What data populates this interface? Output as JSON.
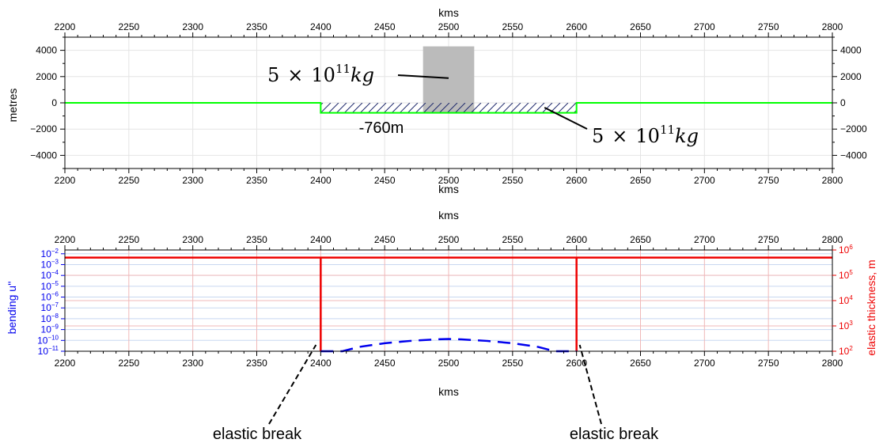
{
  "chart_data": [
    {
      "type": "line",
      "xlabel": "kms",
      "ylabel": "metres",
      "xlim": [
        2200,
        2800
      ],
      "ylim": [
        -5000,
        5000
      ],
      "xticks": [
        2200,
        2250,
        2300,
        2350,
        2400,
        2450,
        2500,
        2550,
        2600,
        2650,
        2700,
        2750,
        2800
      ],
      "yticks_left": [
        "4000",
        "2000",
        "0",
        "−2000",
        "−4000"
      ],
      "yticks_left_values": [
        4000,
        2000,
        0,
        -2000,
        -4000
      ],
      "yticks_right": [
        "4000",
        "2000",
        "0",
        "−2000",
        "−4000"
      ],
      "grid": true,
      "colors": {
        "surface": "#00ff00",
        "load_block": "#bbbbbb",
        "basin_hatch": "#1f2a6b"
      },
      "series": [
        {
          "x": [
            2200,
            2400,
            2400,
            2600,
            2600,
            2800
          ],
          "y": [
            0,
            0,
            -760,
            -760,
            0,
            0
          ]
        }
      ],
      "load_block": {
        "x0": 2480,
        "x1": 2520,
        "y0": -760,
        "y1": 4300
      },
      "basin": {
        "x0": 2400,
        "x1": 2600,
        "y0": -760,
        "y1": 0
      },
      "annotations": [
        {
          "base": "5",
          "times": "×",
          "mantissa": "10",
          "exponent": "11",
          "unit": "kg",
          "points_to": [
            2500,
            2000
          ]
        },
        {
          "text": "-760m"
        },
        {
          "base": "5",
          "times": "×",
          "mantissa": "10",
          "exponent": "11",
          "unit": "kg",
          "points_to": [
            2570,
            -600
          ]
        }
      ]
    },
    {
      "type": "line",
      "xlabel": "kms",
      "ylabel_left": "bending u''",
      "ylabel_right": "elastic thickness, m",
      "xlim": [
        2200,
        2800
      ],
      "xticks": [
        2200,
        2250,
        2300,
        2350,
        2400,
        2450,
        2500,
        2550,
        2600,
        2650,
        2700,
        2750,
        2800
      ],
      "left_log_decades": [
        -11,
        -2
      ],
      "left_tick_exponents": [
        -11,
        -10,
        -9,
        -8,
        -7,
        -6,
        -5,
        -4,
        -3,
        -2
      ],
      "right_log_decades": [
        2,
        6
      ],
      "right_tick_exponents": [
        2,
        3,
        4,
        5,
        6
      ],
      "tick_base": "10",
      "grid": true,
      "colors": {
        "bending": "#0000ee",
        "elastic": "#ee0000",
        "grid_blue": "#c8d8f0",
        "grid_red": "#f0b8b8"
      },
      "series": [
        {
          "axis": "right",
          "x": [
            2200,
            2400,
            2400,
            2400,
            2600,
            2600,
            2600,
            2800
          ],
          "y": [
            500000,
            500000,
            100,
            500000,
            500000,
            100,
            500000,
            500000
          ]
        },
        {
          "axis": "left",
          "x": [
            2400,
            2417,
            2430,
            2450,
            2470,
            2490,
            2500,
            2510,
            2530,
            2550,
            2570,
            2583,
            2600
          ],
          "y": [
            3e-13,
            1e-11,
            2.5e-11,
            5.5e-11,
            9e-11,
            1.25e-10,
            1.35e-10,
            1.25e-10,
            9e-11,
            5.5e-11,
            2.5e-11,
            1e-11,
            3e-13
          ]
        }
      ],
      "annotations": [
        {
          "text": "elastic break",
          "points_to": [
            2400,
            1e-10
          ]
        },
        {
          "text": "elastic break",
          "points_to": [
            2600,
            1e-10
          ]
        }
      ]
    }
  ]
}
